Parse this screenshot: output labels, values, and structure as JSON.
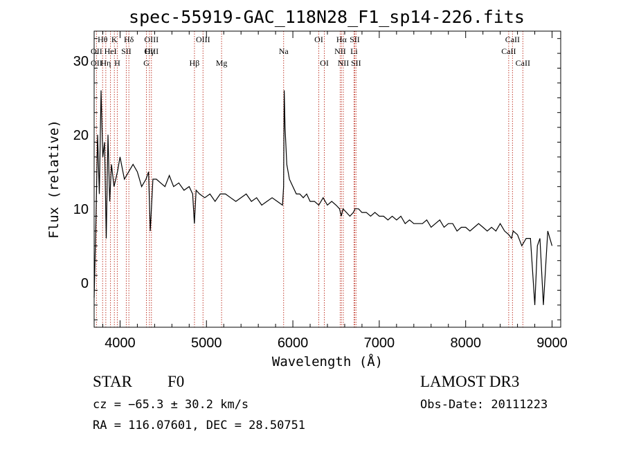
{
  "chart_data": {
    "type": "line",
    "title": "spec-55919-GAC_118N28_F1_sp14-226.fits",
    "xlabel": "Wavelength (Å)",
    "ylabel": "Flux (relative)",
    "xlim": [
      3700,
      9100
    ],
    "ylim": [
      -6,
      34
    ],
    "xticks": [
      4000,
      5000,
      6000,
      7000,
      8000,
      9000
    ],
    "yticks": [
      0,
      10,
      20,
      30
    ],
    "x": [
      3700,
      3720,
      3740,
      3760,
      3780,
      3800,
      3820,
      3840,
      3860,
      3880,
      3900,
      3930,
      3970,
      4000,
      4050,
      4100,
      4150,
      4200,
      4250,
      4300,
      4330,
      4350,
      4380,
      4420,
      4470,
      4520,
      4570,
      4620,
      4680,
      4740,
      4800,
      4840,
      4860,
      4880,
      4920,
      4980,
      5040,
      5100,
      5160,
      5220,
      5280,
      5340,
      5400,
      5460,
      5520,
      5580,
      5640,
      5700,
      5760,
      5820,
      5880,
      5893,
      5900,
      5910,
      5930,
      5960,
      6000,
      6040,
      6080,
      6120,
      6160,
      6200,
      6250,
      6300,
      6350,
      6400,
      6450,
      6500,
      6540,
      6560,
      6580,
      6620,
      6660,
      6700,
      6720,
      6760,
      6800,
      6850,
      6900,
      6950,
      7000,
      7050,
      7100,
      7150,
      7200,
      7250,
      7300,
      7350,
      7400,
      7450,
      7500,
      7550,
      7600,
      7650,
      7700,
      7750,
      7800,
      7850,
      7900,
      7950,
      8000,
      8050,
      8100,
      8150,
      8200,
      8250,
      8300,
      8350,
      8400,
      8450,
      8500,
      8530,
      8550,
      8600,
      8650,
      8700,
      8750,
      8800,
      8830,
      8860,
      8900,
      8950,
      9000
    ],
    "y": [
      -2,
      8,
      20,
      12,
      26,
      17,
      19,
      6,
      20,
      11,
      16,
      13,
      15,
      17,
      14,
      15,
      16,
      15,
      13,
      14,
      15,
      7,
      14,
      14,
      13.5,
      13,
      14.5,
      13,
      13.5,
      12.5,
      13,
      12,
      8,
      12.5,
      12,
      11.5,
      12,
      11,
      12,
      12,
      11.5,
      11,
      11.5,
      12,
      11,
      11.5,
      10.5,
      11,
      11.5,
      11,
      10.5,
      13,
      26,
      21,
      16,
      14,
      13,
      12,
      12,
      11.5,
      12,
      11,
      11,
      10.5,
      11.5,
      10.5,
      11,
      10.5,
      10,
      9,
      10,
      9.5,
      9,
      9.5,
      10,
      10,
      9.5,
      9.5,
      9,
      9.5,
      9,
      9,
      8.5,
      9,
      8.5,
      9,
      8,
      8.5,
      8,
      8,
      8,
      8.5,
      7.5,
      8,
      8.5,
      7.5,
      8,
      8,
      7,
      7.5,
      7.5,
      7,
      7.5,
      8,
      7.5,
      7,
      7.5,
      7,
      8,
      7,
      6.5,
      6,
      7,
      6.5,
      5,
      6,
      6,
      -3,
      5,
      6,
      -3,
      7,
      5
    ],
    "spectral_lines": [
      {
        "label": "Hθ",
        "x": 3798,
        "row": 1
      },
      {
        "label": "K",
        "x": 3934,
        "row": 1
      },
      {
        "label": "Hδ",
        "x": 4102,
        "row": 1
      },
      {
        "label": "OIII",
        "x": 4363,
        "row": 1
      },
      {
        "label": "OIII",
        "x": 4960,
        "row": 1
      },
      {
        "label": "OI",
        "x": 6300,
        "row": 1
      },
      {
        "label": "Hα",
        "x": 6563,
        "row": 1
      },
      {
        "label": "SII",
        "x": 6716,
        "row": 1
      },
      {
        "label": "CaII",
        "x": 8542,
        "row": 1
      },
      {
        "label": "OII",
        "x": 3727,
        "row": 2
      },
      {
        "label": "HeI",
        "x": 3889,
        "row": 2
      },
      {
        "label": "SII",
        "x": 4072,
        "row": 2
      },
      {
        "label": "Hγ",
        "x": 4340,
        "row": 2
      },
      {
        "label": "OIII",
        "x": 4363,
        "row": 2
      },
      {
        "label": "Na",
        "x": 5893,
        "row": 2
      },
      {
        "label": "NII",
        "x": 6548,
        "row": 2
      },
      {
        "label": "Li",
        "x": 6708,
        "row": 2
      },
      {
        "label": "CaII",
        "x": 8498,
        "row": 2
      },
      {
        "label": "OII",
        "x": 3727,
        "row": 3
      },
      {
        "label": "Hη",
        "x": 3835,
        "row": 3
      },
      {
        "label": "H",
        "x": 3968,
        "row": 3
      },
      {
        "label": "G",
        "x": 4305,
        "row": 3
      },
      {
        "label": "Hβ",
        "x": 4861,
        "row": 3
      },
      {
        "label": "Mg",
        "x": 5175,
        "row": 3
      },
      {
        "label": "OI",
        "x": 6364,
        "row": 3
      },
      {
        "label": "NII",
        "x": 6584,
        "row": 3
      },
      {
        "label": "SII",
        "x": 6731,
        "row": 3
      },
      {
        "label": "CaII",
        "x": 8662,
        "row": 3
      }
    ]
  },
  "info": {
    "object_class": "STAR",
    "subclass": "F0",
    "survey": "LAMOST DR3",
    "redshift": "cz = −65.3 ± 30.2 km/s",
    "obs_date": "Obs-Date: 20111223",
    "coords": "RA = 116.07601, DEC =  28.50751"
  }
}
